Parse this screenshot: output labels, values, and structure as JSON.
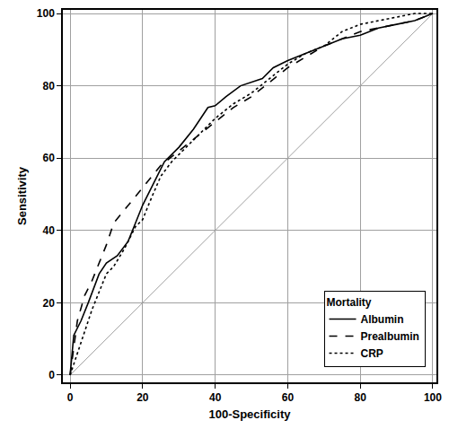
{
  "chart_data": {
    "type": "line",
    "x_label": "100-Specificity",
    "y_label": "Sensitivity",
    "legend_title": "Mortality",
    "legend": "lower right",
    "grid": true,
    "xlim": [
      -2,
      101
    ],
    "ylim": [
      -2,
      101
    ],
    "xticks": [
      0,
      20,
      40,
      60,
      80,
      100
    ],
    "yticks": [
      0,
      20,
      40,
      60,
      80,
      100
    ],
    "series": [
      {
        "name": "Albumin",
        "color": "#000000",
        "line_style": "solid",
        "x": [
          0,
          1,
          3,
          5,
          8,
          10,
          13,
          16,
          18,
          20,
          23,
          26,
          30,
          34,
          38,
          40,
          43,
          47,
          53,
          56,
          60,
          65,
          70,
          75,
          80,
          85,
          90,
          95,
          100
        ],
        "values": [
          0,
          11,
          15,
          20,
          28,
          31,
          33,
          37,
          42,
          47,
          53,
          59,
          63,
          68,
          74,
          74.5,
          77,
          80,
          82,
          85,
          87,
          89,
          91,
          93,
          94,
          96,
          97,
          98,
          100
        ]
      },
      {
        "name": "Prealbumin",
        "color": "#000000",
        "line_style": "dashed",
        "x": [
          0,
          1,
          2,
          4,
          6,
          8,
          10,
          12,
          16,
          20,
          25,
          30,
          35,
          40,
          45,
          50,
          55,
          60,
          65,
          70,
          75,
          80,
          85,
          90,
          95,
          100
        ],
        "values": [
          0,
          8,
          15,
          22,
          26,
          31,
          36,
          42,
          47,
          52,
          58,
          62,
          66,
          70,
          74,
          77,
          81,
          85,
          88,
          91,
          93,
          95,
          96,
          97,
          98,
          100
        ]
      },
      {
        "name": "CRP",
        "color": "#000000",
        "line_style": "dotted",
        "x": [
          0,
          2,
          4,
          6,
          8,
          10,
          12,
          15,
          18,
          20,
          22,
          25,
          28,
          32,
          36,
          40,
          45,
          50,
          55,
          60,
          65,
          70,
          75,
          80,
          85,
          90,
          95,
          100
        ],
        "values": [
          0,
          6,
          12,
          18,
          23,
          28,
          30,
          35,
          41,
          43,
          48,
          55,
          59,
          63,
          67,
          71,
          75,
          78,
          82,
          86,
          89,
          91,
          95,
          97,
          98,
          99,
          100,
          100
        ]
      }
    ]
  }
}
